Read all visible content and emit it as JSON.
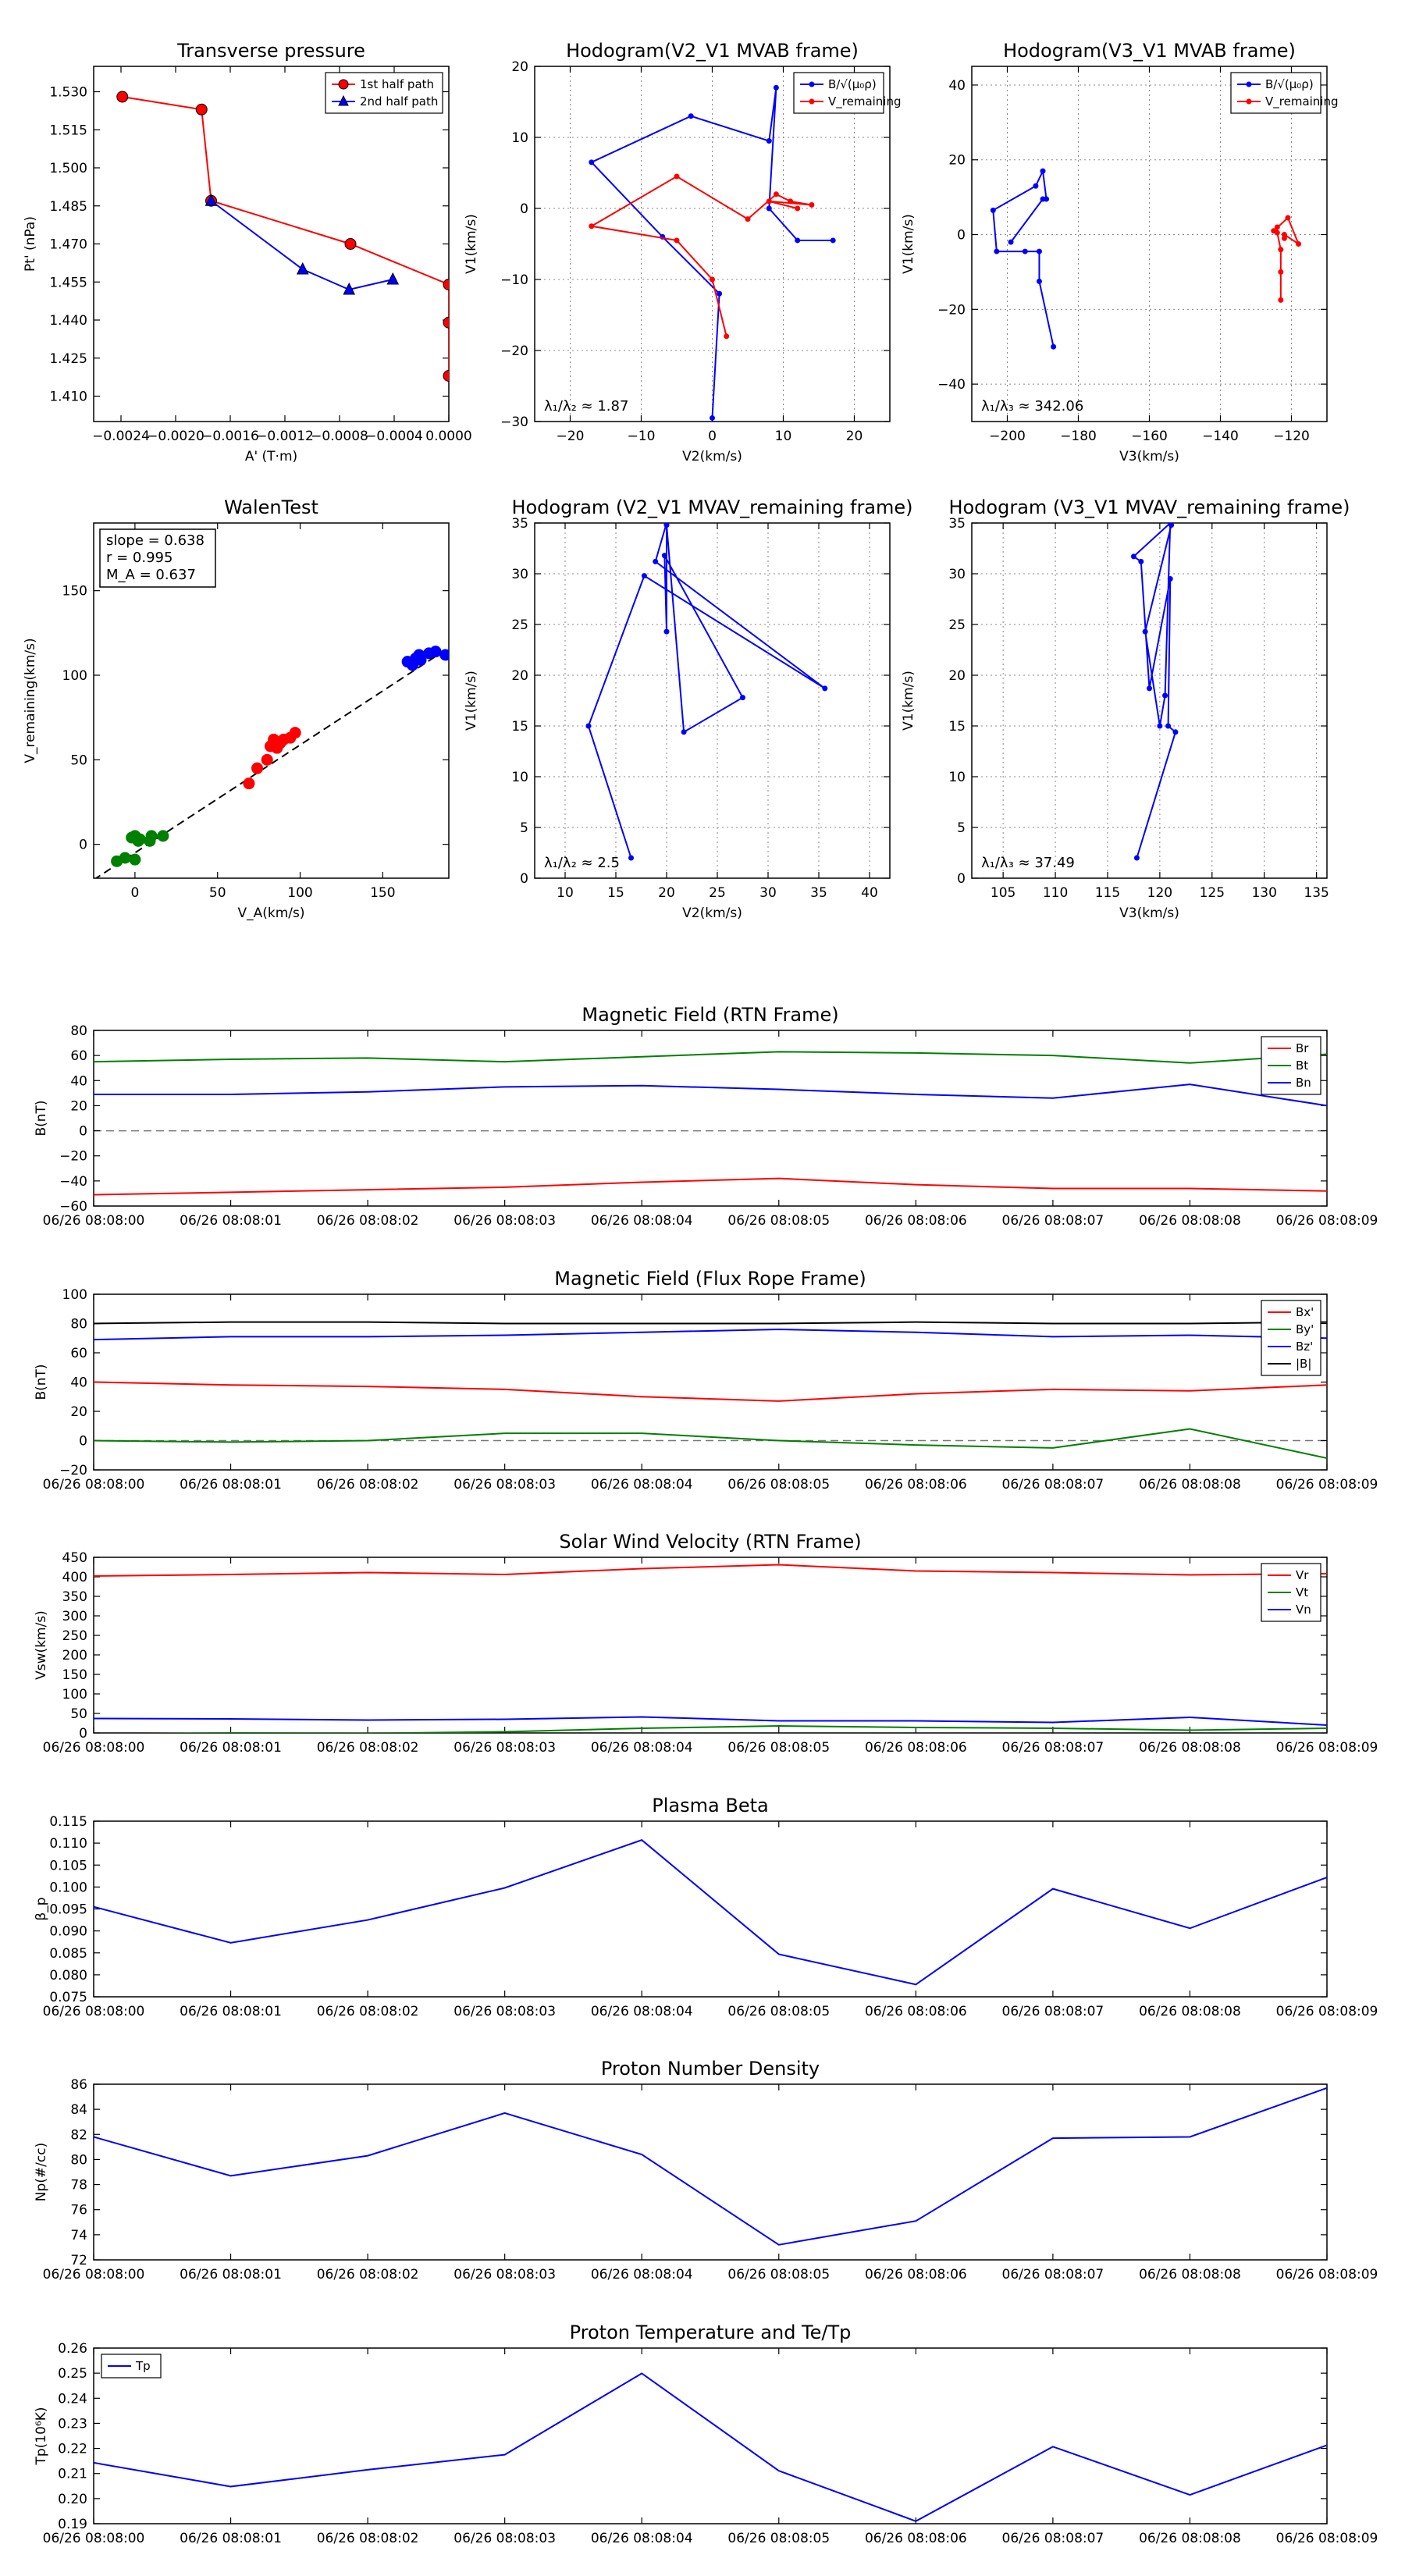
{
  "figure_title": "",
  "colors": {
    "red": "#ff0000",
    "blue": "#0000ff",
    "green": "#008000",
    "black": "#000000"
  },
  "chart_data": [
    {
      "id": "tp",
      "type": "line",
      "title": "Transverse pressure",
      "xlabel": "A' (T·m)",
      "ylabel": "Pt' (nPa)",
      "xlim": [
        -0.0026,
        0.0
      ],
      "ylim": [
        1.4,
        1.54
      ],
      "xticks": [
        -0.0024,
        -0.002,
        -0.0016,
        -0.0012,
        -0.0008,
        -0.0004,
        0.0
      ],
      "xtick_labels": [
        "−0.0024",
        "−0.0020",
        "−0.0016",
        "−0.0012",
        "−0.0008",
        "−0.0004",
        "0.0000"
      ],
      "yticks": [
        1.41,
        1.425,
        1.44,
        1.455,
        1.47,
        1.485,
        1.5,
        1.515,
        1.53
      ],
      "ytick_labels": [
        "1.410",
        "1.425",
        "1.440",
        "1.455",
        "1.470",
        "1.485",
        "1.500",
        "1.515",
        "1.530"
      ],
      "grid": false,
      "legend_loc": "top-right",
      "series": [
        {
          "name": "1st half path",
          "color": "#ff0000",
          "marker": "circle",
          "x": [
            -0.00239,
            -0.00181,
            -0.00174,
            -0.00072,
            0.0,
            0.0,
            0.0
          ],
          "y": [
            1.528,
            1.523,
            1.487,
            1.47,
            1.454,
            1.439,
            1.418
          ]
        },
        {
          "name": "2nd half path",
          "color": "#0000ff",
          "marker": "triangle",
          "x": [
            -0.00174,
            -0.00107,
            -0.00073,
            -0.00041
          ],
          "y": [
            1.487,
            1.46,
            1.452,
            1.456
          ]
        }
      ]
    },
    {
      "id": "hodo1",
      "type": "line",
      "title": "Hodogram(V2_V1 MVAB frame)",
      "xlabel": "V2(km/s)",
      "ylabel": "V1(km/s)",
      "xlim": [
        -25,
        25
      ],
      "ylim": [
        -30,
        20
      ],
      "xticks": [
        -20,
        -10,
        0,
        10,
        20
      ],
      "xtick_labels": [
        "−20",
        "−10",
        "0",
        "10",
        "20"
      ],
      "yticks": [
        -30,
        -20,
        -10,
        0,
        10,
        20
      ],
      "ytick_labels": [
        "−30",
        "−20",
        "−10",
        "0",
        "10",
        "20"
      ],
      "grid": true,
      "legend_loc": "top-right",
      "annotation": "λ₁/λ₂ ≈ 1.87",
      "series": [
        {
          "name": "B/√(μ₀ρ)",
          "color": "#0000ff",
          "marker": "dot",
          "x": [
            0,
            1,
            -7,
            -17,
            -3,
            8,
            9,
            8,
            12,
            17
          ],
          "y": [
            -29.5,
            -12,
            -4,
            6.5,
            13,
            9.5,
            17,
            0,
            -4.5,
            -4.5
          ]
        },
        {
          "name": "V_remaining",
          "color": "#ff0000",
          "marker": "dot",
          "x": [
            2,
            0,
            -5,
            -17,
            -5,
            5,
            9,
            11,
            14,
            8,
            12
          ],
          "y": [
            -18,
            -10,
            -4.5,
            -2.5,
            4.5,
            -1.5,
            2,
            1,
            0.5,
            1,
            0
          ]
        }
      ]
    },
    {
      "id": "hodo2",
      "type": "line",
      "title": "Hodogram(V3_V1 MVAB frame)",
      "xlabel": "V3(km/s)",
      "ylabel": "V1(km/s)",
      "xlim": [
        -210,
        -110
      ],
      "ylim": [
        -50,
        45
      ],
      "xticks": [
        -200,
        -180,
        -160,
        -140,
        -120
      ],
      "xtick_labels": [
        "−200",
        "−180",
        "−160",
        "−140",
        "−120"
      ],
      "yticks": [
        -40,
        -20,
        0,
        20,
        40
      ],
      "ytick_labels": [
        "−40",
        "−20",
        "0",
        "20",
        "40"
      ],
      "grid": true,
      "legend_loc": "top-right",
      "annotation": "λ₁/λ₃ ≈ 342.06",
      "series": [
        {
          "name": "B/√(μ₀ρ)",
          "color": "#0000ff",
          "marker": "dot",
          "x": [
            -187,
            -191,
            -191,
            -195,
            -203,
            -204,
            -192,
            -190,
            -189,
            -190,
            -199
          ],
          "y": [
            -30,
            -12.5,
            -4.5,
            -4.5,
            -4.5,
            6.5,
            13,
            17,
            9.5,
            9.5,
            -2
          ]
        },
        {
          "name": "V_remaining",
          "color": "#ff0000",
          "marker": "dot",
          "x": [
            -123,
            -123,
            -123,
            -124,
            -124,
            -125,
            -121,
            -118,
            -122,
            -122
          ],
          "y": [
            -17.5,
            -10,
            -4,
            0.5,
            2,
            1,
            4.5,
            -2.5,
            0,
            -1
          ]
        }
      ]
    },
    {
      "id": "walen",
      "type": "scatter",
      "title": "WalenTest",
      "xlabel": "V_A(km/s)",
      "ylabel": "V_remaining(km/s)",
      "xlim": [
        -25,
        190
      ],
      "ylim": [
        -20,
        190
      ],
      "xticks": [
        0,
        50,
        100,
        150
      ],
      "xtick_labels": [
        "0",
        "50",
        "100",
        "150"
      ],
      "yticks": [
        0,
        50,
        100,
        150
      ],
      "ytick_labels": [
        "0",
        "50",
        "100",
        "150"
      ],
      "grid": false,
      "stats": [
        "slope = 0.638",
        "r = 0.995",
        "M_A = 0.637"
      ],
      "fit_line": {
        "slope": 0.638,
        "intercept": -5
      },
      "series": [
        {
          "name": "green",
          "color": "#008000",
          "x": [
            -11,
            -6,
            -2,
            0,
            2,
            3,
            9,
            10,
            17,
            0
          ],
          "y": [
            -10,
            -8,
            4,
            5,
            2,
            3,
            2,
            5,
            5,
            -9
          ]
        },
        {
          "name": "red",
          "color": "#ff0000",
          "x": [
            69,
            74,
            80,
            82,
            84,
            86,
            88,
            90,
            94,
            97
          ],
          "y": [
            36,
            45,
            50,
            58,
            62,
            57,
            60,
            62,
            63,
            66
          ]
        },
        {
          "name": "blue",
          "color": "#0000ff",
          "x": [
            165,
            168,
            170,
            172,
            178,
            182,
            188,
            173
          ],
          "y": [
            108,
            106,
            110,
            112,
            113,
            114,
            112,
            109
          ]
        }
      ]
    },
    {
      "id": "hodo3",
      "type": "line",
      "title": "Hodogram (V2_V1 MVAV_remaining frame)",
      "xlabel": "V2(km/s)",
      "ylabel": "V1(km/s)",
      "xlim": [
        7,
        42
      ],
      "ylim": [
        0,
        35
      ],
      "xticks": [
        10,
        15,
        20,
        25,
        30,
        35,
        40
      ],
      "xtick_labels": [
        "10",
        "15",
        "20",
        "25",
        "30",
        "35",
        "40"
      ],
      "yticks": [
        0,
        5,
        10,
        15,
        20,
        25,
        30,
        35
      ],
      "ytick_labels": [
        "0",
        "5",
        "10",
        "15",
        "20",
        "25",
        "30",
        "35"
      ],
      "grid": true,
      "annotation": "λ₁/λ₂ ≈ 2.5",
      "series": [
        {
          "name": "path",
          "color": "#0000ff",
          "marker": "dot",
          "x": [
            16.5,
            12.3,
            17.8,
            35.6,
            18.9,
            20,
            20,
            19.8,
            27.5,
            21.7,
            20
          ],
          "y": [
            2,
            15,
            29.8,
            18.7,
            31.2,
            35,
            24.3,
            31.8,
            17.8,
            14.4,
            34.8
          ]
        }
      ]
    },
    {
      "id": "hodo4",
      "type": "line",
      "title": "Hodogram (V3_V1 MVAV_remaining frame)",
      "xlabel": "V3(km/s)",
      "ylabel": "V1(km/s)",
      "xlim": [
        102,
        136
      ],
      "ylim": [
        0,
        35
      ],
      "xticks": [
        105,
        110,
        115,
        120,
        125,
        130,
        135
      ],
      "xtick_labels": [
        "105",
        "110",
        "115",
        "120",
        "125",
        "130",
        "135"
      ],
      "yticks": [
        0,
        5,
        10,
        15,
        20,
        25,
        30,
        35
      ],
      "ytick_labels": [
        "0",
        "5",
        "10",
        "15",
        "20",
        "25",
        "30",
        "35"
      ],
      "grid": true,
      "annotation": "λ₁/λ₃ ≈ 37.49",
      "series": [
        {
          "name": "path",
          "color": "#0000ff",
          "marker": "dot",
          "x": [
            117.8,
            121.5,
            120.8,
            121,
            119,
            118.2,
            117.5,
            121,
            120.5,
            120,
            118.6,
            121.1
          ],
          "y": [
            2,
            14.4,
            15,
            29.5,
            18.7,
            31.2,
            31.7,
            35,
            18,
            15,
            24.3,
            34.8
          ]
        }
      ]
    },
    {
      "id": "bfield",
      "type": "line",
      "title": "Magnetic Field (RTN Frame)",
      "ylabel": "B(nT)",
      "ylim": [
        -60,
        80
      ],
      "yticks": [
        -60,
        -40,
        -20,
        0,
        20,
        40,
        60,
        80
      ],
      "ytick_labels": [
        "−60",
        "−40",
        "−20",
        "0",
        "20",
        "40",
        "60",
        "80"
      ],
      "hline": 0,
      "legend_loc": "top-right",
      "x": [
        0,
        1,
        2,
        3,
        4,
        5,
        6,
        7,
        8,
        9
      ],
      "xtick_labels": [
        "06/26 08:08:00",
        "06/26 08:08:01",
        "06/26 08:08:02",
        "06/26 08:08:03",
        "06/26 08:08:04",
        "06/26 08:08:05",
        "06/26 08:08:06",
        "06/26 08:08:07",
        "06/26 08:08:08",
        "06/26 08:08:09"
      ],
      "series": [
        {
          "name": "Br",
          "color": "#ff0000",
          "values": [
            -51,
            -49,
            -47,
            -45,
            -41,
            -38,
            -43,
            -46,
            -46,
            -48
          ]
        },
        {
          "name": "Bt",
          "color": "#008000",
          "values": [
            55,
            57,
            58,
            55,
            59,
            63,
            62,
            60,
            54,
            61
          ]
        },
        {
          "name": "Bn",
          "color": "#0000ff",
          "values": [
            29,
            29,
            31,
            35,
            36,
            33,
            29,
            26,
            37,
            20
          ]
        }
      ]
    },
    {
      "id": "bfr",
      "type": "line",
      "title": "Magnetic Field (Flux Rope Frame)",
      "ylabel": "B(nT)",
      "ylim": [
        -20,
        100
      ],
      "yticks": [
        -20,
        0,
        20,
        40,
        60,
        80,
        100
      ],
      "ytick_labels": [
        "−20",
        "0",
        "20",
        "40",
        "60",
        "80",
        "100"
      ],
      "hline": 0,
      "legend_loc": "top-right",
      "x": [
        0,
        1,
        2,
        3,
        4,
        5,
        6,
        7,
        8,
        9
      ],
      "xtick_labels": [
        "06/26 08:08:00",
        "06/26 08:08:01",
        "06/26 08:08:02",
        "06/26 08:08:03",
        "06/26 08:08:04",
        "06/26 08:08:05",
        "06/26 08:08:06",
        "06/26 08:08:07",
        "06/26 08:08:08",
        "06/26 08:08:09"
      ],
      "series": [
        {
          "name": "Bx'",
          "color": "#ff0000",
          "values": [
            40,
            38,
            37,
            35,
            30,
            27,
            32,
            35,
            34,
            38
          ]
        },
        {
          "name": "By'",
          "color": "#008000",
          "values": [
            0,
            -1,
            0,
            5,
            5,
            0,
            -3,
            -5,
            8,
            -12
          ]
        },
        {
          "name": "Bz'",
          "color": "#0000ff",
          "values": [
            69,
            71,
            71,
            72,
            74,
            76,
            74,
            71,
            72,
            70
          ]
        },
        {
          "name": "|B|",
          "color": "#000000",
          "values": [
            80,
            81,
            81,
            80,
            80,
            80,
            81,
            80,
            80,
            81
          ]
        }
      ]
    },
    {
      "id": "vsw",
      "type": "line",
      "title": "Solar Wind Velocity (RTN Frame)",
      "ylabel": "Vsw(km/s)",
      "ylim": [
        0,
        450
      ],
      "yticks": [
        0,
        50,
        100,
        150,
        200,
        250,
        300,
        350,
        400,
        450
      ],
      "ytick_labels": [
        "0",
        "50",
        "100",
        "150",
        "200",
        "250",
        "300",
        "350",
        "400",
        "450"
      ],
      "legend_loc": "top-right",
      "x": [
        0,
        1,
        2,
        3,
        4,
        5,
        6,
        7,
        8,
        9
      ],
      "xtick_labels": [
        "06/26 08:08:00",
        "06/26 08:08:01",
        "06/26 08:08:02",
        "06/26 08:08:03",
        "06/26 08:08:04",
        "06/26 08:08:05",
        "06/26 08:08:06",
        "06/26 08:08:07",
        "06/26 08:08:08",
        "06/26 08:08:09"
      ],
      "series": [
        {
          "name": "Vr",
          "color": "#ff0000",
          "values": [
            402,
            406,
            411,
            406,
            421,
            431,
            415,
            411,
            405,
            408
          ]
        },
        {
          "name": "Vt",
          "color": "#008000",
          "values": [
            -3,
            0,
            -1,
            3,
            12,
            18,
            14,
            12,
            7,
            12
          ]
        },
        {
          "name": "Vn",
          "color": "#0000ff",
          "values": [
            37,
            36,
            33,
            35,
            41,
            31,
            31,
            27,
            40,
            20
          ]
        }
      ]
    },
    {
      "id": "beta",
      "type": "line",
      "title": "Plasma Beta",
      "ylabel": "β_p",
      "ylim": [
        0.075,
        0.115
      ],
      "yticks": [
        0.075,
        0.08,
        0.085,
        0.09,
        0.095,
        0.1,
        0.105,
        0.11,
        0.115
      ],
      "ytick_labels": [
        "0.075",
        "0.080",
        "0.085",
        "0.090",
        "0.095",
        "0.100",
        "0.105",
        "0.110",
        "0.115"
      ],
      "x": [
        0,
        1,
        2,
        3,
        4,
        5,
        6,
        7,
        8,
        9
      ],
      "xtick_labels": [
        "06/26 08:08:00",
        "06/26 08:08:01",
        "06/26 08:08:02",
        "06/26 08:08:03",
        "06/26 08:08:04",
        "06/26 08:08:05",
        "06/26 08:08:06",
        "06/26 08:08:07",
        "06/26 08:08:08",
        "06/26 08:08:09"
      ],
      "series": [
        {
          "name": "beta",
          "color": "#0000ff",
          "values": [
            0.0955,
            0.0873,
            0.0925,
            0.0998,
            0.1107,
            0.0847,
            0.0778,
            0.0996,
            0.0906,
            0.1022
          ]
        }
      ]
    },
    {
      "id": "np",
      "type": "line",
      "title": "Proton Number Density",
      "ylabel": "Np(#/cc)",
      "ylim": [
        72,
        86
      ],
      "yticks": [
        72,
        74,
        76,
        78,
        80,
        82,
        84,
        86
      ],
      "ytick_labels": [
        "72",
        "74",
        "76",
        "78",
        "80",
        "82",
        "84",
        "86"
      ],
      "x": [
        0,
        1,
        2,
        3,
        4,
        5,
        6,
        7,
        8,
        9
      ],
      "xtick_labels": [
        "06/26 08:08:00",
        "06/26 08:08:01",
        "06/26 08:08:02",
        "06/26 08:08:03",
        "06/26 08:08:04",
        "06/26 08:08:05",
        "06/26 08:08:06",
        "06/26 08:08:07",
        "06/26 08:08:08",
        "06/26 08:08:09"
      ],
      "series": [
        {
          "name": "Np",
          "color": "#0000ff",
          "values": [
            81.8,
            78.7,
            80.3,
            83.7,
            80.4,
            73.2,
            75.1,
            81.7,
            81.8,
            85.7
          ]
        }
      ]
    },
    {
      "id": "tp2",
      "type": "line",
      "title": "Proton Temperature and Te/Tp",
      "ylabel": "Tp(10⁶K)",
      "ylim": [
        0.19,
        0.26
      ],
      "yticks": [
        0.19,
        0.2,
        0.21,
        0.22,
        0.23,
        0.24,
        0.25,
        0.26
      ],
      "ytick_labels": [
        "0.19",
        "0.20",
        "0.21",
        "0.22",
        "0.23",
        "0.24",
        "0.25",
        "0.26"
      ],
      "legend_loc": "top-left",
      "x": [
        0,
        1,
        2,
        3,
        4,
        5,
        6,
        7,
        8,
        9
      ],
      "xtick_labels": [
        "06/26 08:08:00",
        "06/26 08:08:01",
        "06/26 08:08:02",
        "06/26 08:08:03",
        "06/26 08:08:04",
        "06/26 08:08:05",
        "06/26 08:08:06",
        "06/26 08:08:07",
        "06/26 08:08:08",
        "06/26 08:08:09"
      ],
      "series": [
        {
          "name": "Tp",
          "color": "#0000ff",
          "values": [
            0.2143,
            0.2048,
            0.2115,
            0.2175,
            0.2499,
            0.2111,
            0.191,
            0.2207,
            0.2015,
            0.2213
          ]
        }
      ]
    }
  ]
}
